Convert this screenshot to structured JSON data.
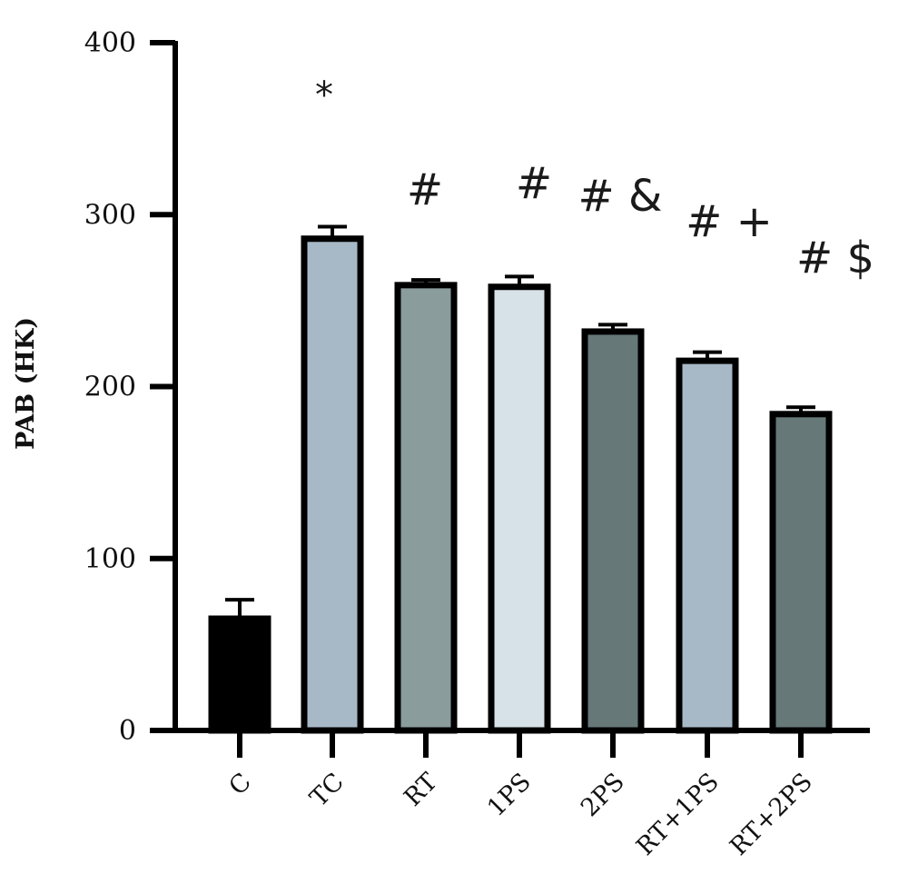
{
  "chart_data": {
    "type": "bar",
    "ylabel": "PAB (HK)",
    "xlabel": "",
    "ylim": [
      0,
      400
    ],
    "yticks": [
      0,
      100,
      200,
      300,
      400
    ],
    "categories": [
      "C",
      "TC",
      "RT",
      "1PS",
      "2PS",
      "RT+1PS",
      "RT+2PS"
    ],
    "values": [
      65,
      286,
      259,
      258,
      232,
      215,
      184
    ],
    "errors": [
      11,
      7,
      3,
      6,
      4,
      5,
      4
    ],
    "annotations": [
      "",
      "*",
      "#",
      "#",
      "# &",
      "# +",
      "# $"
    ],
    "colors": [
      "#000000",
      "#a7b9c7",
      "#8a9c9c",
      "#d7e1e8",
      "#667878",
      "#a7b9c7",
      "#667878"
    ],
    "grid": false,
    "legend": "none"
  }
}
